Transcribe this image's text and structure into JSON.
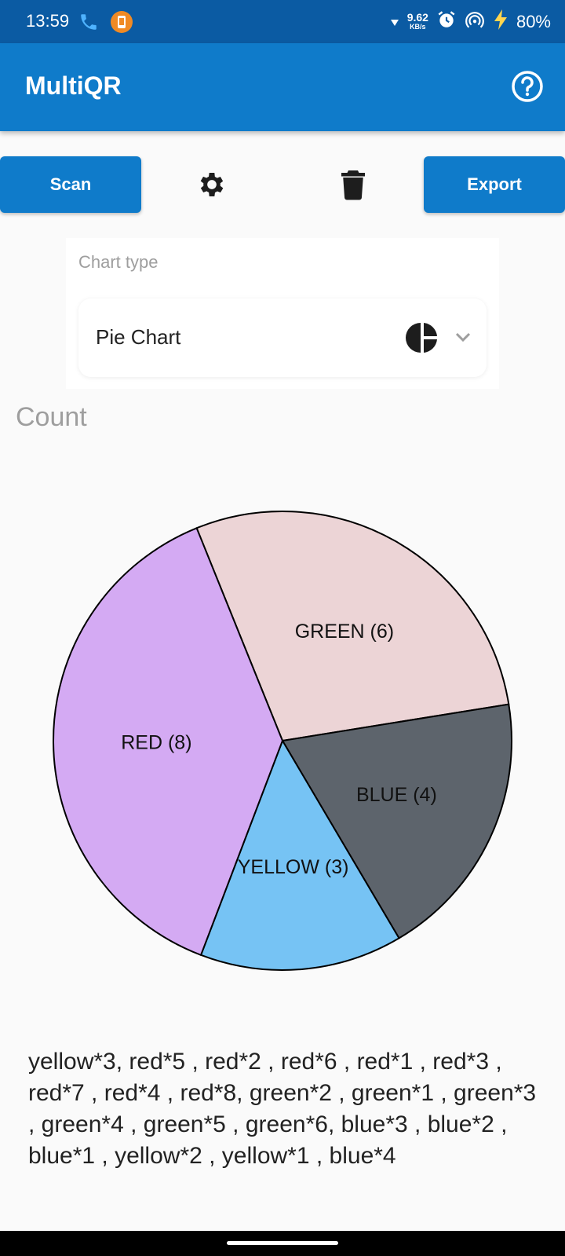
{
  "status_bar": {
    "time": "13:59",
    "net_speed_value": "9.62",
    "net_speed_unit": "KB/s",
    "battery": "80%",
    "icons": [
      "phone-icon",
      "app-notification-icon",
      "download-arrow-icon",
      "alarm-icon",
      "hotspot-icon",
      "charging-icon"
    ]
  },
  "app_bar": {
    "title": "MultiQR",
    "help_icon": "help-circle-icon"
  },
  "toolbar": {
    "scan_label": "Scan",
    "export_label": "Export",
    "settings_icon": "gear-icon",
    "delete_icon": "trash-icon"
  },
  "chart_type": {
    "label": "Chart type",
    "selected": "Pie Chart",
    "icon": "pie-chart-icon"
  },
  "chart_data": {
    "type": "pie",
    "title": "Count",
    "slices": [
      {
        "label": "GREEN (6)",
        "name": "GREEN",
        "value": 6,
        "color": "#ecd4d6"
      },
      {
        "label": "BLUE (4)",
        "name": "BLUE",
        "value": 4,
        "color": "#5d646c"
      },
      {
        "label": "YELLOW (3)",
        "name": "YELLOW",
        "value": 3,
        "color": "#76c3f4"
      },
      {
        "label": "RED (8)",
        "name": "RED",
        "value": 8,
        "color": "#d4aaf3"
      }
    ]
  },
  "raw_text": "yellow*3, red*5 , red*2 , red*6 , red*1 , red*3 , red*7 , red*4 , red*8, green*2 , green*1 , green*3 , green*4 , green*5 , green*6, blue*3 , blue*2 , blue*1 , yellow*2 , yellow*1 , blue*4"
}
